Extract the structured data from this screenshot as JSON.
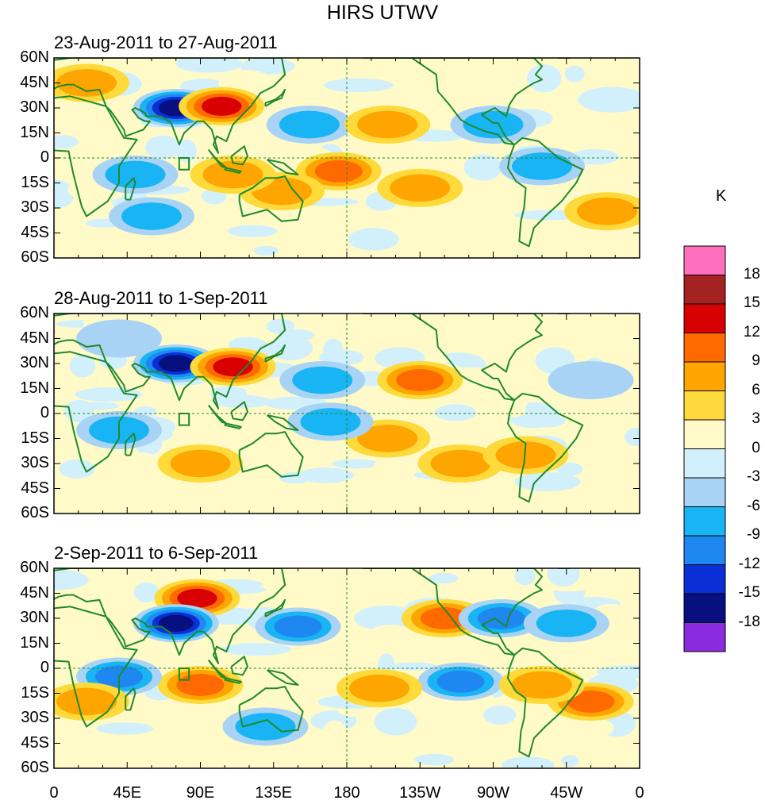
{
  "title": "HIRS UTWV",
  "units": "K",
  "panels": [
    {
      "title": "23-Aug-2011 to 27-Aug-2011"
    },
    {
      "title": "28-Aug-2011 to 1-Sep-2011"
    },
    {
      "title": "2-Sep-2011 to 6-Sep-2011"
    }
  ],
  "y_ticks": [
    "60N",
    "45N",
    "30N",
    "15N",
    "0",
    "15S",
    "30S",
    "45S",
    "60S"
  ],
  "x_ticks": [
    "0",
    "45E",
    "90E",
    "135E",
    "180",
    "135W",
    "90W",
    "45W",
    "0"
  ],
  "colorbar": {
    "labels": [
      "18",
      "15",
      "12",
      "9",
      "6",
      "3",
      "0",
      "-3",
      "-6",
      "-9",
      "-12",
      "-15",
      "-18"
    ],
    "colors": [
      "#ff6fc0",
      "#a52222",
      "#d80000",
      "#ff6a00",
      "#ffa500",
      "#ffda3a",
      "#fffac8",
      "#d2f0fb",
      "#a8d3f5",
      "#19b4f4",
      "#1e88f0",
      "#0a2fd6",
      "#08107f",
      "#8b2be0"
    ]
  },
  "map_colors": {
    "coast": "#1f8a2a",
    "zero_line": "#1f8a2a"
  },
  "chart_data": {
    "type": "heatmap",
    "variable": "HIRS UTWV anomaly",
    "units": "K",
    "x_range": [
      "0",
      "0"
    ],
    "y_range": [
      "60S",
      "60N"
    ],
    "contour_levels": [
      -18,
      -15,
      -12,
      -9,
      -6,
      -3,
      0,
      3,
      6,
      9,
      12,
      15,
      18
    ],
    "panels": [
      {
        "period": "23-Aug-2011 to 27-Aug-2011",
        "features": [
          {
            "lon": 75,
            "lat": 30,
            "value": -15
          },
          {
            "lon": 103,
            "lat": 31,
            "value": 12
          },
          {
            "lon": 157,
            "lat": 20,
            "value": -6
          },
          {
            "lon": 205,
            "lat": 20,
            "value": 6
          },
          {
            "lon": 175,
            "lat": -8,
            "value": 9
          },
          {
            "lon": 225,
            "lat": -18,
            "value": 6
          },
          {
            "lon": 50,
            "lat": -10,
            "value": -6
          },
          {
            "lon": 300,
            "lat": -5,
            "value": -6
          },
          {
            "lon": 340,
            "lat": -32,
            "value": 6
          },
          {
            "lon": 20,
            "lat": 45,
            "value": 6
          },
          {
            "lon": 270,
            "lat": 20,
            "value": -6
          },
          {
            "lon": 140,
            "lat": -20,
            "value": 6
          },
          {
            "lon": 60,
            "lat": -35,
            "value": -6
          },
          {
            "lon": 110,
            "lat": -10,
            "value": 6
          }
        ]
      },
      {
        "period": "28-Aug-2011 to 1-Sep-2011",
        "features": [
          {
            "lon": 75,
            "lat": 30,
            "value": -15
          },
          {
            "lon": 110,
            "lat": 28,
            "value": 12
          },
          {
            "lon": 165,
            "lat": 20,
            "value": -6
          },
          {
            "lon": 225,
            "lat": 20,
            "value": 9
          },
          {
            "lon": 205,
            "lat": -15,
            "value": 6
          },
          {
            "lon": 250,
            "lat": -30,
            "value": 6
          },
          {
            "lon": 40,
            "lat": -10,
            "value": -6
          },
          {
            "lon": 90,
            "lat": -30,
            "value": 6
          },
          {
            "lon": 290,
            "lat": -25,
            "value": 6
          },
          {
            "lon": 170,
            "lat": -5,
            "value": -6
          },
          {
            "lon": 330,
            "lat": 20,
            "value": -3
          },
          {
            "lon": 40,
            "lat": 45,
            "value": -3
          }
        ]
      },
      {
        "period": "2-Sep-2011 to 6-Sep-2011",
        "features": [
          {
            "lon": 88,
            "lat": 42,
            "value": 12
          },
          {
            "lon": 75,
            "lat": 27,
            "value": -15
          },
          {
            "lon": 150,
            "lat": 25,
            "value": -9
          },
          {
            "lon": 240,
            "lat": 30,
            "value": 9
          },
          {
            "lon": 275,
            "lat": 30,
            "value": -9
          },
          {
            "lon": 315,
            "lat": 27,
            "value": -6
          },
          {
            "lon": 90,
            "lat": -10,
            "value": 9
          },
          {
            "lon": 40,
            "lat": -5,
            "value": -9
          },
          {
            "lon": 250,
            "lat": -8,
            "value": -9
          },
          {
            "lon": 330,
            "lat": -20,
            "value": 9
          },
          {
            "lon": 20,
            "lat": -20,
            "value": 6
          },
          {
            "lon": 200,
            "lat": -12,
            "value": 6
          },
          {
            "lon": 130,
            "lat": -35,
            "value": -6
          },
          {
            "lon": 300,
            "lat": -10,
            "value": 6
          }
        ]
      }
    ]
  }
}
